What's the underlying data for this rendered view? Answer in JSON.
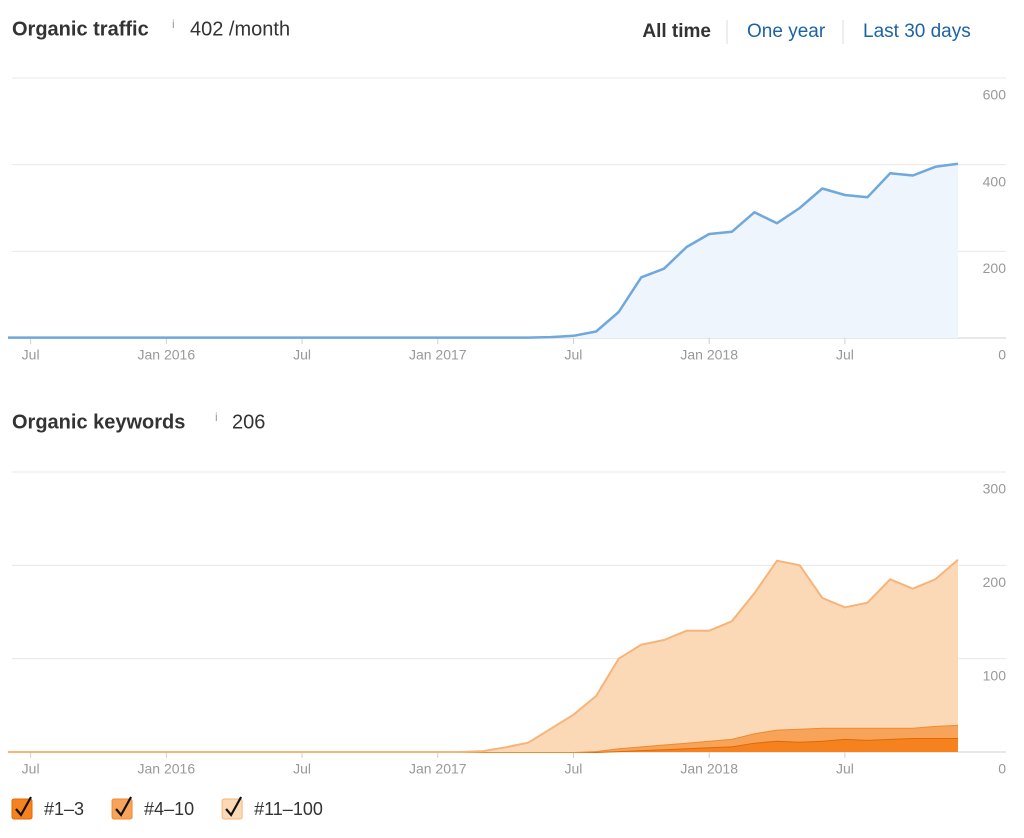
{
  "tabs": [
    "All time",
    "One year",
    "Last 30 days"
  ],
  "chart_data": [
    {
      "type": "area",
      "title": "Organic traffic",
      "info": "i",
      "summary": "402 /month",
      "x": [
        "2015-06",
        "2015-07",
        "2015-08",
        "2015-09",
        "2015-10",
        "2015-11",
        "2015-12",
        "2016-01",
        "2016-02",
        "2016-03",
        "2016-04",
        "2016-05",
        "2016-06",
        "2016-07",
        "2016-08",
        "2016-09",
        "2016-10",
        "2016-11",
        "2016-12",
        "2017-01",
        "2017-02",
        "2017-03",
        "2017-04",
        "2017-05",
        "2017-06",
        "2017-07",
        "2017-08",
        "2017-09",
        "2017-10",
        "2017-11",
        "2017-12",
        "2018-01",
        "2018-02",
        "2018-03",
        "2018-04",
        "2018-05",
        "2018-06",
        "2018-07",
        "2018-08",
        "2018-09",
        "2018-10",
        "2018-11",
        "2018-12"
      ],
      "series": [
        {
          "name": "Organic traffic",
          "color": "#6fa8dc",
          "fill": "#eef5fc",
          "values": [
            1,
            1,
            1,
            1,
            1,
            1,
            1,
            1,
            1,
            1,
            1,
            1,
            1,
            1,
            1,
            1,
            1,
            1,
            1,
            1,
            1,
            1,
            1,
            1,
            2,
            5,
            15,
            60,
            140,
            160,
            210,
            240,
            245,
            290,
            265,
            300,
            345,
            330,
            325,
            380,
            375,
            395,
            402
          ]
        }
      ],
      "xlim": [
        "2015-06",
        "2018-12"
      ],
      "xticks": [
        {
          "value": "2015-07",
          "label": "Jul"
        },
        {
          "value": "2016-01",
          "label": "Jan 2016"
        },
        {
          "value": "2016-07",
          "label": "Jul"
        },
        {
          "value": "2017-01",
          "label": "Jan 2017"
        },
        {
          "value": "2017-07",
          "label": "Jul"
        },
        {
          "value": "2018-01",
          "label": "Jan 2018"
        },
        {
          "value": "2018-07",
          "label": "Jul"
        }
      ],
      "ylim": [
        0,
        600
      ],
      "yticks": [
        0,
        200,
        400,
        600
      ],
      "grid": true
    },
    {
      "type": "stacked_area",
      "title": "Organic keywords",
      "info": "i",
      "summary": "206",
      "x": [
        "2015-06",
        "2015-07",
        "2015-08",
        "2015-09",
        "2015-10",
        "2015-11",
        "2015-12",
        "2016-01",
        "2016-02",
        "2016-03",
        "2016-04",
        "2016-05",
        "2016-06",
        "2016-07",
        "2016-08",
        "2016-09",
        "2016-10",
        "2016-11",
        "2016-12",
        "2017-01",
        "2017-02",
        "2017-03",
        "2017-04",
        "2017-05",
        "2017-06",
        "2017-07",
        "2017-08",
        "2017-09",
        "2017-10",
        "2017-11",
        "2017-12",
        "2018-01",
        "2018-02",
        "2018-03",
        "2018-04",
        "2018-05",
        "2018-06",
        "2018-07",
        "2018-08",
        "2018-09",
        "2018-10",
        "2018-11",
        "2018-12"
      ],
      "series": [
        {
          "name": "#1–3",
          "color": "#f5821f",
          "values": [
            0,
            0,
            0,
            0,
            0,
            0,
            0,
            0,
            0,
            0,
            0,
            0,
            0,
            0,
            0,
            0,
            0,
            0,
            0,
            0,
            0,
            0,
            0,
            0,
            0,
            0,
            0,
            1,
            2,
            3,
            4,
            5,
            6,
            10,
            12,
            11,
            12,
            14,
            13,
            14,
            15,
            15,
            15
          ]
        },
        {
          "name": "#4–10",
          "color": "#f8a35a",
          "values": [
            0,
            0,
            0,
            0,
            0,
            0,
            0,
            0,
            0,
            0,
            0,
            0,
            0,
            0,
            0,
            0,
            0,
            0,
            0,
            0,
            0,
            0,
            0,
            0,
            0,
            0,
            1,
            3,
            4,
            5,
            6,
            7,
            8,
            10,
            12,
            14,
            14,
            12,
            13,
            12,
            11,
            13,
            14
          ]
        },
        {
          "name": "#11–100",
          "color": "#fcd9b6",
          "values": [
            0,
            0,
            0,
            0,
            0,
            0,
            0,
            0,
            0,
            0,
            0,
            0,
            0,
            0,
            0,
            0,
            0,
            0,
            0,
            0,
            0,
            1,
            5,
            10,
            25,
            40,
            59,
            96,
            109,
            112,
            120,
            118,
            126,
            150,
            181,
            175,
            139,
            129,
            134,
            159,
            149,
            157,
            177
          ]
        }
      ],
      "xlim": [
        "2015-06",
        "2018-12"
      ],
      "xticks": [
        {
          "value": "2015-07",
          "label": "Jul"
        },
        {
          "value": "2016-01",
          "label": "Jan 2016"
        },
        {
          "value": "2016-07",
          "label": "Jul"
        },
        {
          "value": "2017-01",
          "label": "Jan 2017"
        },
        {
          "value": "2017-07",
          "label": "Jul"
        },
        {
          "value": "2018-01",
          "label": "Jan 2018"
        },
        {
          "value": "2018-07",
          "label": "Jul"
        }
      ],
      "ylim": [
        0,
        300
      ],
      "yticks": [
        0,
        100,
        200,
        300
      ],
      "grid": true,
      "legend": "bottom-left"
    }
  ]
}
